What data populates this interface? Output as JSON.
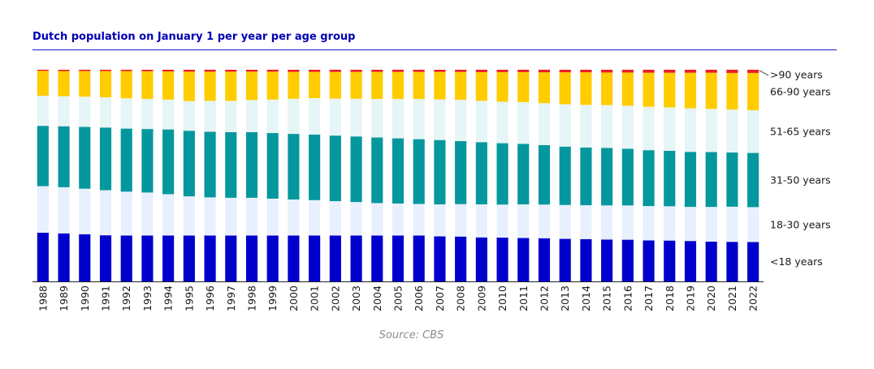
{
  "chart_data": {
    "type": "bar",
    "stacked": true,
    "normalized": true,
    "title": "Dutch population on January 1 per year per age group",
    "source": "Source: CBS",
    "unit": "share of population (%)",
    "ylim": [
      0,
      100
    ],
    "grid": false,
    "legend_placement": "right",
    "categories": [
      "1988",
      "1989",
      "1990",
      "1991",
      "1992",
      "1993",
      "1994",
      "1995",
      "1996",
      "1997",
      "1998",
      "1999",
      "2000",
      "2001",
      "2002",
      "2003",
      "2004",
      "2005",
      "2006",
      "2007",
      "2008",
      "2009",
      "2010",
      "2011",
      "2012",
      "2013",
      "2014",
      "2015",
      "2016",
      "2017",
      "2018",
      "2019",
      "2020",
      "2021",
      "2022"
    ],
    "series": [
      {
        "name": "<18 years",
        "color": "#0000cc",
        "values": [
          23.0,
          22.7,
          22.3,
          21.8,
          21.7,
          21.7,
          21.7,
          21.7,
          21.7,
          21.7,
          21.7,
          21.7,
          21.7,
          21.7,
          21.7,
          21.7,
          21.7,
          21.7,
          21.7,
          21.3,
          21.2,
          20.8,
          20.7,
          20.5,
          20.4,
          20.1,
          20.0,
          19.8,
          19.7,
          19.4,
          19.3,
          19.1,
          18.8,
          18.7,
          18.6
        ]
      },
      {
        "name": "18-30 years",
        "color": "#e8f0fe",
        "values": [
          22.0,
          21.8,
          21.5,
          21.3,
          20.7,
          20.3,
          19.5,
          18.5,
          18.0,
          17.8,
          17.8,
          17.4,
          17.0,
          16.7,
          16.2,
          15.8,
          15.3,
          15.1,
          14.9,
          15.1,
          15.3,
          15.6,
          15.6,
          15.9,
          15.9,
          16.0,
          16.0,
          16.1,
          16.2,
          16.2,
          16.2,
          16.1,
          16.4,
          16.6,
          16.5
        ]
      },
      {
        "name": "31-50 years",
        "color": "#05979e",
        "values": [
          28.5,
          28.8,
          29.2,
          29.6,
          29.8,
          30.0,
          30.6,
          31.0,
          31.0,
          31.0,
          31.0,
          31.0,
          31.0,
          31.0,
          31.0,
          31.0,
          31.0,
          30.8,
          30.6,
          30.4,
          29.8,
          29.4,
          29.0,
          28.6,
          28.1,
          27.6,
          27.3,
          27.2,
          26.8,
          26.4,
          26.2,
          26.0,
          25.9,
          25.6,
          25.6
        ]
      },
      {
        "name": "51-65 years",
        "color": "#e6f5f5",
        "values": [
          14.2,
          14.2,
          14.3,
          14.3,
          14.3,
          14.2,
          14.1,
          14.0,
          14.6,
          14.8,
          15.2,
          15.8,
          16.6,
          17.2,
          17.5,
          17.8,
          18.2,
          18.6,
          19.0,
          19.2,
          19.5,
          19.5,
          19.6,
          19.7,
          19.8,
          20.0,
          20.1,
          20.2,
          20.3,
          20.5,
          20.5,
          20.6,
          20.4,
          20.3,
          20.2
        ]
      },
      {
        "name": "66-90 years",
        "color": "#ffcc00",
        "values": [
          11.8,
          11.9,
          12.1,
          12.4,
          12.9,
          13.1,
          13.3,
          13.9,
          13.8,
          13.8,
          13.4,
          13.2,
          12.7,
          12.4,
          12.6,
          12.7,
          12.8,
          12.8,
          12.8,
          13.0,
          13.2,
          13.6,
          14.0,
          14.2,
          14.6,
          15.1,
          15.4,
          15.4,
          15.7,
          16.1,
          16.4,
          16.8,
          17.1,
          17.3,
          17.6
        ]
      },
      {
        "name": ">90 years",
        "color": "#ee1c25",
        "values": [
          0.5,
          0.6,
          0.6,
          0.6,
          0.6,
          0.7,
          0.8,
          0.9,
          0.9,
          0.9,
          0.9,
          0.9,
          1.0,
          1.0,
          1.0,
          1.0,
          1.0,
          1.0,
          1.0,
          1.0,
          1.0,
          1.1,
          1.1,
          1.1,
          1.2,
          1.2,
          1.2,
          1.3,
          1.3,
          1.4,
          1.4,
          1.4,
          1.4,
          1.5,
          1.5
        ]
      }
    ]
  }
}
